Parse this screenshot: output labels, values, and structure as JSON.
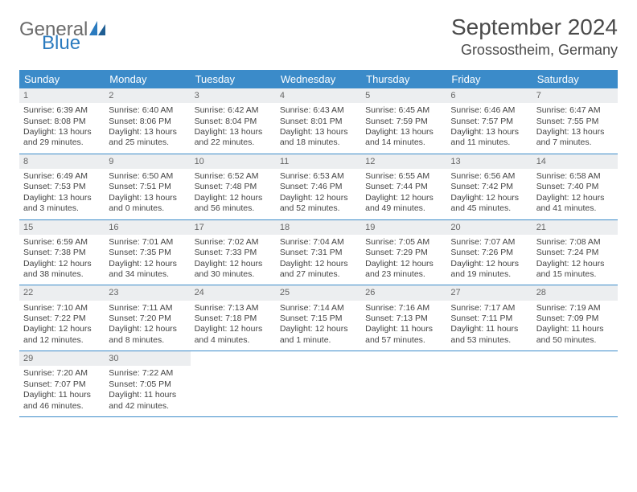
{
  "logo": {
    "general": "General",
    "blue": "Blue"
  },
  "title": {
    "month": "September 2024",
    "location": "Grossostheim, Germany"
  },
  "colors": {
    "header_bg": "#3b8bc9",
    "header_text": "#ffffff",
    "week_border": "#3b8bc9",
    "daynum_bg": "#eceef0",
    "body_text": "#444444",
    "logo_gray": "#6b6b6b",
    "logo_blue": "#2b7bbf"
  },
  "dow": [
    "Sunday",
    "Monday",
    "Tuesday",
    "Wednesday",
    "Thursday",
    "Friday",
    "Saturday"
  ],
  "days": [
    {
      "n": "1",
      "sr": "Sunrise: 6:39 AM",
      "ss": "Sunset: 8:08 PM",
      "d1": "Daylight: 13 hours",
      "d2": "and 29 minutes."
    },
    {
      "n": "2",
      "sr": "Sunrise: 6:40 AM",
      "ss": "Sunset: 8:06 PM",
      "d1": "Daylight: 13 hours",
      "d2": "and 25 minutes."
    },
    {
      "n": "3",
      "sr": "Sunrise: 6:42 AM",
      "ss": "Sunset: 8:04 PM",
      "d1": "Daylight: 13 hours",
      "d2": "and 22 minutes."
    },
    {
      "n": "4",
      "sr": "Sunrise: 6:43 AM",
      "ss": "Sunset: 8:01 PM",
      "d1": "Daylight: 13 hours",
      "d2": "and 18 minutes."
    },
    {
      "n": "5",
      "sr": "Sunrise: 6:45 AM",
      "ss": "Sunset: 7:59 PM",
      "d1": "Daylight: 13 hours",
      "d2": "and 14 minutes."
    },
    {
      "n": "6",
      "sr": "Sunrise: 6:46 AM",
      "ss": "Sunset: 7:57 PM",
      "d1": "Daylight: 13 hours",
      "d2": "and 11 minutes."
    },
    {
      "n": "7",
      "sr": "Sunrise: 6:47 AM",
      "ss": "Sunset: 7:55 PM",
      "d1": "Daylight: 13 hours",
      "d2": "and 7 minutes."
    },
    {
      "n": "8",
      "sr": "Sunrise: 6:49 AM",
      "ss": "Sunset: 7:53 PM",
      "d1": "Daylight: 13 hours",
      "d2": "and 3 minutes."
    },
    {
      "n": "9",
      "sr": "Sunrise: 6:50 AM",
      "ss": "Sunset: 7:51 PM",
      "d1": "Daylight: 13 hours",
      "d2": "and 0 minutes."
    },
    {
      "n": "10",
      "sr": "Sunrise: 6:52 AM",
      "ss": "Sunset: 7:48 PM",
      "d1": "Daylight: 12 hours",
      "d2": "and 56 minutes."
    },
    {
      "n": "11",
      "sr": "Sunrise: 6:53 AM",
      "ss": "Sunset: 7:46 PM",
      "d1": "Daylight: 12 hours",
      "d2": "and 52 minutes."
    },
    {
      "n": "12",
      "sr": "Sunrise: 6:55 AM",
      "ss": "Sunset: 7:44 PM",
      "d1": "Daylight: 12 hours",
      "d2": "and 49 minutes."
    },
    {
      "n": "13",
      "sr": "Sunrise: 6:56 AM",
      "ss": "Sunset: 7:42 PM",
      "d1": "Daylight: 12 hours",
      "d2": "and 45 minutes."
    },
    {
      "n": "14",
      "sr": "Sunrise: 6:58 AM",
      "ss": "Sunset: 7:40 PM",
      "d1": "Daylight: 12 hours",
      "d2": "and 41 minutes."
    },
    {
      "n": "15",
      "sr": "Sunrise: 6:59 AM",
      "ss": "Sunset: 7:38 PM",
      "d1": "Daylight: 12 hours",
      "d2": "and 38 minutes."
    },
    {
      "n": "16",
      "sr": "Sunrise: 7:01 AM",
      "ss": "Sunset: 7:35 PM",
      "d1": "Daylight: 12 hours",
      "d2": "and 34 minutes."
    },
    {
      "n": "17",
      "sr": "Sunrise: 7:02 AM",
      "ss": "Sunset: 7:33 PM",
      "d1": "Daylight: 12 hours",
      "d2": "and 30 minutes."
    },
    {
      "n": "18",
      "sr": "Sunrise: 7:04 AM",
      "ss": "Sunset: 7:31 PM",
      "d1": "Daylight: 12 hours",
      "d2": "and 27 minutes."
    },
    {
      "n": "19",
      "sr": "Sunrise: 7:05 AM",
      "ss": "Sunset: 7:29 PM",
      "d1": "Daylight: 12 hours",
      "d2": "and 23 minutes."
    },
    {
      "n": "20",
      "sr": "Sunrise: 7:07 AM",
      "ss": "Sunset: 7:26 PM",
      "d1": "Daylight: 12 hours",
      "d2": "and 19 minutes."
    },
    {
      "n": "21",
      "sr": "Sunrise: 7:08 AM",
      "ss": "Sunset: 7:24 PM",
      "d1": "Daylight: 12 hours",
      "d2": "and 15 minutes."
    },
    {
      "n": "22",
      "sr": "Sunrise: 7:10 AM",
      "ss": "Sunset: 7:22 PM",
      "d1": "Daylight: 12 hours",
      "d2": "and 12 minutes."
    },
    {
      "n": "23",
      "sr": "Sunrise: 7:11 AM",
      "ss": "Sunset: 7:20 PM",
      "d1": "Daylight: 12 hours",
      "d2": "and 8 minutes."
    },
    {
      "n": "24",
      "sr": "Sunrise: 7:13 AM",
      "ss": "Sunset: 7:18 PM",
      "d1": "Daylight: 12 hours",
      "d2": "and 4 minutes."
    },
    {
      "n": "25",
      "sr": "Sunrise: 7:14 AM",
      "ss": "Sunset: 7:15 PM",
      "d1": "Daylight: 12 hours",
      "d2": "and 1 minute."
    },
    {
      "n": "26",
      "sr": "Sunrise: 7:16 AM",
      "ss": "Sunset: 7:13 PM",
      "d1": "Daylight: 11 hours",
      "d2": "and 57 minutes."
    },
    {
      "n": "27",
      "sr": "Sunrise: 7:17 AM",
      "ss": "Sunset: 7:11 PM",
      "d1": "Daylight: 11 hours",
      "d2": "and 53 minutes."
    },
    {
      "n": "28",
      "sr": "Sunrise: 7:19 AM",
      "ss": "Sunset: 7:09 PM",
      "d1": "Daylight: 11 hours",
      "d2": "and 50 minutes."
    },
    {
      "n": "29",
      "sr": "Sunrise: 7:20 AM",
      "ss": "Sunset: 7:07 PM",
      "d1": "Daylight: 11 hours",
      "d2": "and 46 minutes."
    },
    {
      "n": "30",
      "sr": "Sunrise: 7:22 AM",
      "ss": "Sunset: 7:05 PM",
      "d1": "Daylight: 11 hours",
      "d2": "and 42 minutes."
    }
  ],
  "layout": {
    "first_offset": 0,
    "total_cells": 35
  }
}
